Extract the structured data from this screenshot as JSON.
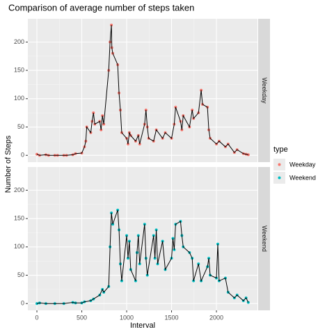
{
  "chart_data": {
    "type": "line",
    "title": "Comparison of average number of steps taken",
    "xlabel": "Interval",
    "ylabel": "Number of Steps",
    "legend_title": "type",
    "legend": "right",
    "grid": true,
    "xlim": [
      -101,
      2457
    ],
    "ylim": [
      -12,
      241
    ],
    "xticks": [
      0,
      500,
      1000,
      1500,
      2000
    ],
    "yticks": [
      0,
      50,
      100,
      150,
      200
    ],
    "line_color": "#000000",
    "series": [
      {
        "name": "Weekday",
        "color": "#F8766D",
        "x": [
          0,
          30,
          100,
          130,
          200,
          230,
          300,
          330,
          400,
          430,
          500,
          530,
          545,
          555,
          600,
          615,
          630,
          645,
          700,
          715,
          730,
          745,
          800,
          815,
          830,
          835,
          845,
          900,
          915,
          930,
          945,
          1000,
          1015,
          1030,
          1045,
          1100,
          1130,
          1145,
          1200,
          1215,
          1230,
          1245,
          1300,
          1330,
          1400,
          1430,
          1500,
          1530,
          1545,
          1600,
          1615,
          1630,
          1700,
          1730,
          1745,
          1800,
          1830,
          1845,
          1900,
          1915,
          1930,
          2000,
          2030,
          2100,
          2130,
          2200,
          2230,
          2300,
          2330,
          2355
        ],
        "values": [
          2,
          0,
          1,
          0,
          0,
          0,
          0,
          0,
          1,
          3,
          4,
          15,
          25,
          50,
          40,
          60,
          75,
          55,
          60,
          45,
          70,
          55,
          150,
          200,
          230,
          190,
          180,
          160,
          110,
          80,
          40,
          30,
          20,
          40,
          35,
          25,
          35,
          20,
          55,
          80,
          50,
          30,
          25,
          45,
          30,
          40,
          30,
          55,
          85,
          60,
          45,
          70,
          50,
          80,
          65,
          75,
          115,
          90,
          85,
          45,
          30,
          20,
          25,
          15,
          20,
          5,
          10,
          3,
          2,
          1
        ]
      },
      {
        "name": "Weekend",
        "color": "#00BFC4",
        "x": [
          0,
          30,
          100,
          200,
          300,
          400,
          430,
          500,
          530,
          600,
          630,
          700,
          730,
          745,
          800,
          815,
          830,
          845,
          900,
          915,
          930,
          945,
          1000,
          1015,
          1030,
          1045,
          1100,
          1115,
          1130,
          1145,
          1200,
          1215,
          1230,
          1300,
          1315,
          1330,
          1345,
          1400,
          1430,
          1500,
          1515,
          1530,
          1545,
          1600,
          1615,
          1630,
          1700,
          1730,
          1745,
          1800,
          1830,
          1900,
          1915,
          1930,
          2000,
          2015,
          2030,
          2100,
          2130,
          2200,
          2230,
          2300,
          2330,
          2355
        ],
        "values": [
          0,
          1,
          0,
          0,
          0,
          2,
          1,
          1,
          3,
          5,
          8,
          15,
          25,
          20,
          30,
          100,
          160,
          140,
          165,
          130,
          70,
          40,
          120,
          80,
          110,
          60,
          40,
          90,
          120,
          70,
          140,
          80,
          50,
          120,
          80,
          130,
          70,
          110,
          60,
          80,
          115,
          95,
          140,
          145,
          120,
          100,
          90,
          80,
          40,
          70,
          40,
          65,
          80,
          50,
          45,
          105,
          40,
          45,
          20,
          10,
          15,
          5,
          10,
          2
        ]
      }
    ]
  }
}
